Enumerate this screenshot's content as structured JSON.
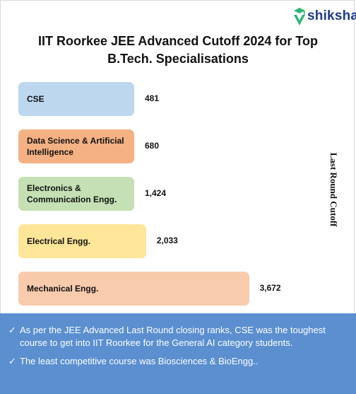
{
  "brand": {
    "name": "shiksha",
    "color": "#1f3a8f",
    "mark_color": "#2bb673"
  },
  "chart_data": {
    "type": "bar",
    "orientation": "horizontal",
    "title_lines": [
      "IIT Roorkee JEE Advanced Cutoff 2024 for Top",
      "B.Tech. Specialisations"
    ],
    "ylabel": "Last Round Cutoff",
    "xlim": [
      0,
      4250
    ],
    "grid": false,
    "categories": [
      "CSE",
      "Data Science & Artificial Intelligence",
      "Electronics & Communication Engg.",
      "Electrical Engg.",
      "Mechanical Engg."
    ],
    "values": [
      481,
      680,
      1424,
      2033,
      3672
    ],
    "value_labels": [
      "481",
      "680",
      "1,424",
      "2,033",
      "3,672"
    ],
    "colors": [
      "#bdd7ee",
      "#f4b183",
      "#c5e0b4",
      "#ffe699",
      "#f8cbad"
    ]
  },
  "notes": [
    "As per the JEE Advanced Last Round closing ranks, CSE was the toughest course to get into IIT Roorkee for the General AI category students.",
    "The least competitive course was Biosciences & BioEngg.."
  ],
  "check_symbol": "✓",
  "notes_background": "#5b8fd0"
}
